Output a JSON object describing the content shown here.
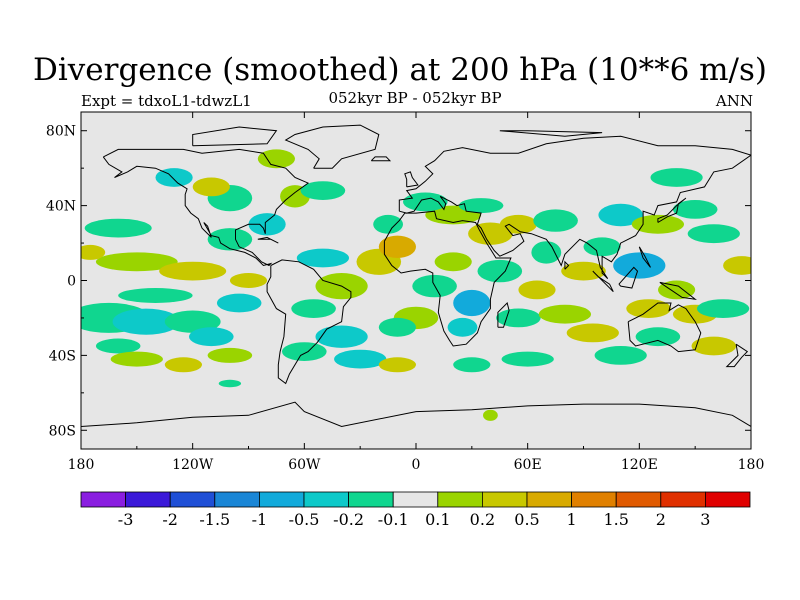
{
  "map": {
    "title": "Divergence (smoothed) at 200 hPa (10**6 m/s)",
    "subtitle": "052kyr BP - 052kyr BP",
    "left_label": "Expt = tdxoL1-tdwzL1",
    "right_label": "ANN",
    "projection": "cylindrical equidistant",
    "lat_ticks": [
      {
        "value": 80,
        "label": "80N"
      },
      {
        "value": 40,
        "label": "40N"
      },
      {
        "value": 0,
        "label": "0"
      },
      {
        "value": -40,
        "label": "40S"
      },
      {
        "value": -80,
        "label": "80S"
      }
    ],
    "lon_ticks": [
      {
        "value": -180,
        "label": "180"
      },
      {
        "value": -120,
        "label": "120W"
      },
      {
        "value": -60,
        "label": "60W"
      },
      {
        "value": 0,
        "label": "0"
      },
      {
        "value": 60,
        "label": "60E"
      },
      {
        "value": 120,
        "label": "120E"
      },
      {
        "value": 180,
        "label": "180"
      }
    ],
    "lat_range": [
      -90,
      90
    ],
    "lon_range": [
      -180,
      180
    ],
    "missing_color": "#e6e6e6"
  },
  "colorbar": {
    "colors": [
      "#8a1ee0",
      "#3b19d9",
      "#1f4fd6",
      "#1a86d6",
      "#12aadb",
      "#0dc9c9",
      "#10d68f",
      "#e6e6e6",
      "#9ad400",
      "#c8c800",
      "#d8aa00",
      "#e08000",
      "#e05a00",
      "#e03000",
      "#e00000"
    ],
    "labels": [
      "-3",
      "-2",
      "-1.5",
      "-1",
      "-0.5",
      "-0.2",
      "-0.1",
      "0.1",
      "0.2",
      "0.5",
      "1",
      "1.5",
      "2",
      "3"
    ]
  }
}
